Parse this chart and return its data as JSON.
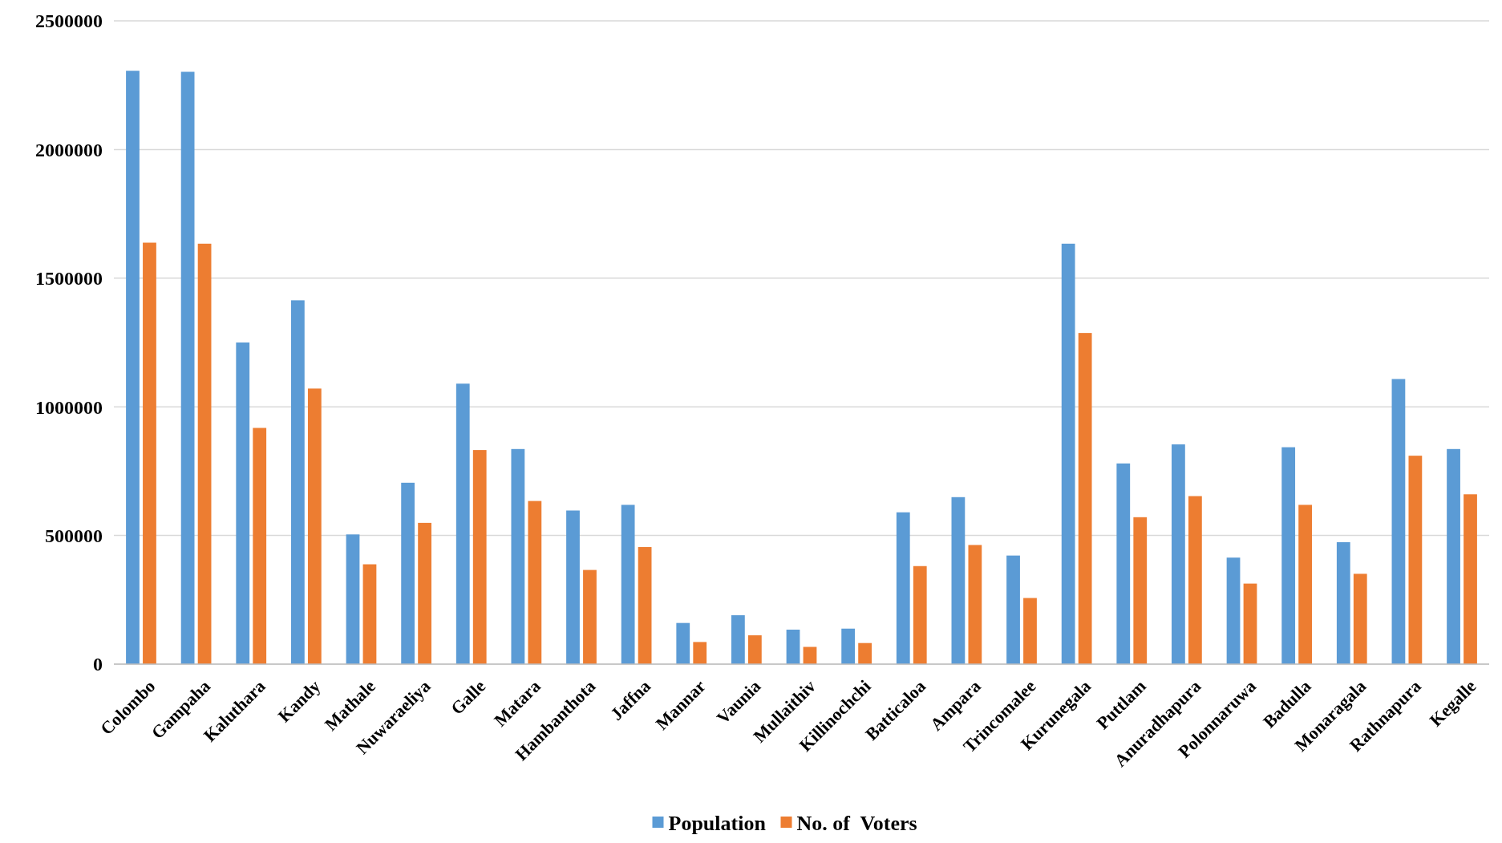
{
  "chart_data": {
    "type": "bar",
    "categories": [
      "Colombo",
      "Gampaha",
      "Kaluthara",
      "Kandy",
      "Mathale",
      "Nuwaraeliya",
      "Galle",
      "Matara",
      "Hambanthota",
      "Jaffna",
      "Mannar",
      "Vaunia",
      "Mullaithiv",
      "Killinochchi",
      "Batticaloa",
      "Ampara",
      "Trincomalee",
      "Kurunegala",
      "Puttlam",
      "Anuradhapura",
      "Polonnaruwa",
      "Badulla",
      "Monaragala",
      "Rathnapura",
      "Kegalle"
    ],
    "series": [
      {
        "name": "Population",
        "color": "#5b9bd5",
        "values": [
          2306000,
          2302000,
          1250000,
          1414000,
          504000,
          705000,
          1090000,
          836000,
          597000,
          619000,
          160000,
          190000,
          134000,
          138000,
          590000,
          649000,
          422000,
          1634000,
          780000,
          854000,
          414000,
          843000,
          474000,
          1108000,
          836000
        ]
      },
      {
        "name": "No. of  Voters",
        "color": "#ed7d31",
        "values": [
          1638000,
          1634000,
          918000,
          1071000,
          388000,
          549000,
          832000,
          634000,
          366000,
          455000,
          86000,
          112000,
          67000,
          82000,
          381000,
          463000,
          257000,
          1287000,
          571000,
          653000,
          313000,
          619000,
          351000,
          810000,
          660000
        ]
      }
    ],
    "ylim": [
      0,
      2500000
    ],
    "yticks": [
      0,
      500000,
      1000000,
      1500000,
      2000000,
      2500000
    ],
    "grid": "y",
    "legend": "bottom"
  }
}
